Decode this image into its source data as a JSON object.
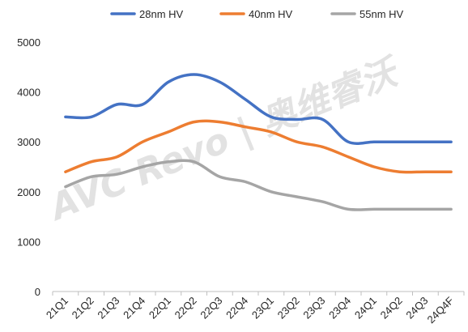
{
  "chart_data": {
    "type": "line",
    "categories": [
      "21Q1",
      "21Q2",
      "21Q3",
      "21Q4",
      "22Q1",
      "22Q2",
      "22Q3",
      "22Q4",
      "23Q1",
      "23Q2",
      "23Q3",
      "23Q4",
      "24Q1",
      "24Q2",
      "24Q3",
      "24Q4F"
    ],
    "series": [
      {
        "name": "28nm HV",
        "color": "#4472c4",
        "values": [
          3500,
          3500,
          3750,
          3750,
          4200,
          4350,
          4200,
          3850,
          3500,
          3450,
          3450,
          3000,
          3000,
          3000,
          3000,
          3000
        ]
      },
      {
        "name": "40nm HV",
        "color": "#ed7d31",
        "values": [
          2400,
          2600,
          2700,
          3000,
          3200,
          3400,
          3400,
          3300,
          3200,
          3000,
          2900,
          2700,
          2500,
          2400,
          2400,
          2400
        ]
      },
      {
        "name": "55nm HV",
        "color": "#a5a5a5",
        "values": [
          2100,
          2300,
          2350,
          2500,
          2600,
          2600,
          2300,
          2200,
          2000,
          1900,
          1800,
          1650,
          1650,
          1650,
          1650,
          1650
        ]
      }
    ],
    "ylim": [
      0,
      5000
    ],
    "yticks": [
      0,
      1000,
      2000,
      3000,
      4000,
      5000
    ],
    "xlabel": "",
    "ylabel": "",
    "legend_position": "top",
    "grid": false
  },
  "watermark": "AVC Revo | 奥维睿沃"
}
